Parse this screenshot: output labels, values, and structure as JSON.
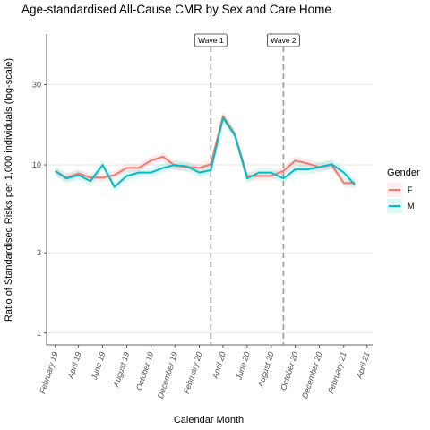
{
  "chart_data": {
    "type": "line",
    "title": "Age-standardised All-Cause CMR by Sex and Care Home",
    "xlabel": "Calendar Month",
    "ylabel": "Ratio of Standardised Risks per 1,000 individuals (log-scale)",
    "y_scale": "log",
    "ylim": [
      0.85,
      60
    ],
    "y_ticks": [
      1,
      3,
      10,
      30
    ],
    "y_tick_labels": [
      "1",
      "3",
      "10",
      "30"
    ],
    "x_ticks": [
      "2019-02",
      "2019-04",
      "2019-06",
      "2019-08",
      "2019-10",
      "2019-12",
      "2020-02",
      "2020-04",
      "2020-06",
      "2020-08",
      "2020-10",
      "2020-12",
      "2021-02",
      "2021-04"
    ],
    "x_tick_labels": [
      "February 19",
      "April 19",
      "June 19",
      "August 19",
      "October 19",
      "December 19",
      "February 20",
      "April 20",
      "June 20",
      "August 20",
      "October 20",
      "December 20",
      "February 21",
      "April 21"
    ],
    "xlim": [
      "2019-01-10",
      "2021-04-15"
    ],
    "grid": "horizontal",
    "legend": {
      "title": "Gender",
      "position": "right"
    },
    "annotations": [
      {
        "label": "Wave 1",
        "x": "2020-03"
      },
      {
        "label": "Wave 2",
        "x": "2020-09"
      }
    ],
    "x": [
      "2019-02",
      "2019-03",
      "2019-04",
      "2019-05",
      "2019-06",
      "2019-07",
      "2019-08",
      "2019-09",
      "2019-10",
      "2019-11",
      "2019-12",
      "2020-01",
      "2020-02",
      "2020-03",
      "2020-04",
      "2020-05",
      "2020-06",
      "2020-07",
      "2020-08",
      "2020-09",
      "2020-10",
      "2020-11",
      "2020-12",
      "2021-01",
      "2021-02",
      "2021-03"
    ],
    "series": [
      {
        "name": "F",
        "color": "#F8766D",
        "values": [
          9.2,
          8.4,
          8.9,
          8.4,
          8.4,
          8.7,
          9.6,
          9.6,
          10.6,
          11.2,
          9.9,
          9.7,
          9.6,
          10.1,
          19.5,
          15.2,
          8.6,
          8.6,
          8.6,
          9.2,
          10.6,
          10.2,
          9.7,
          10.0,
          7.8,
          7.8
        ],
        "band": 0.06
      },
      {
        "name": "M",
        "color": "#00BFC4",
        "values": [
          9.2,
          8.3,
          8.7,
          8.0,
          10.0,
          7.4,
          8.6,
          9.0,
          9.0,
          9.6,
          10.0,
          9.8,
          9.0,
          9.3,
          19.0,
          15.0,
          8.3,
          9.0,
          9.0,
          8.3,
          9.4,
          9.4,
          9.7,
          10.1,
          9.0,
          7.6
        ],
        "band": 0.07
      }
    ]
  }
}
